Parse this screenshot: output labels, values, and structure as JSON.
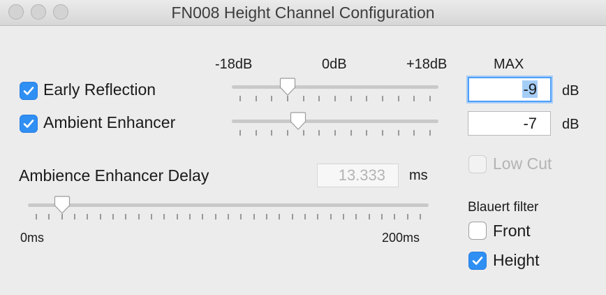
{
  "window": {
    "title": "FN008 Height Channel Configuration"
  },
  "level_scale": {
    "min_label": "-18dB",
    "mid_label": "0dB",
    "max_label": "+18dB",
    "column_header": "MAX",
    "range_db": [
      -18,
      18
    ]
  },
  "early_reflection": {
    "label": "Early Reflection",
    "checked": true,
    "slider_db": -9,
    "value": "-9",
    "unit": "dB"
  },
  "ambient_enhancer": {
    "label": "Ambient Enhancer",
    "checked": true,
    "slider_db": -7,
    "value": "-7",
    "unit": "dB"
  },
  "low_cut": {
    "label": "Low Cut",
    "checked": false,
    "enabled": false
  },
  "delay": {
    "label": "Ambience Enhancer Delay",
    "value": "13.333",
    "unit": "ms",
    "min_label": "0ms",
    "max_label": "200ms",
    "range_ms": [
      0,
      200
    ],
    "slider_ms": 13.333
  },
  "blauert": {
    "label": "Blauert filter",
    "front_label": "Front",
    "front_checked": false,
    "height_label": "Height",
    "height_checked": true
  },
  "colors": {
    "checkbox_on": "#2f8ff3",
    "focus_ring": "#4f9ff8",
    "window_bg": "#ececec"
  }
}
